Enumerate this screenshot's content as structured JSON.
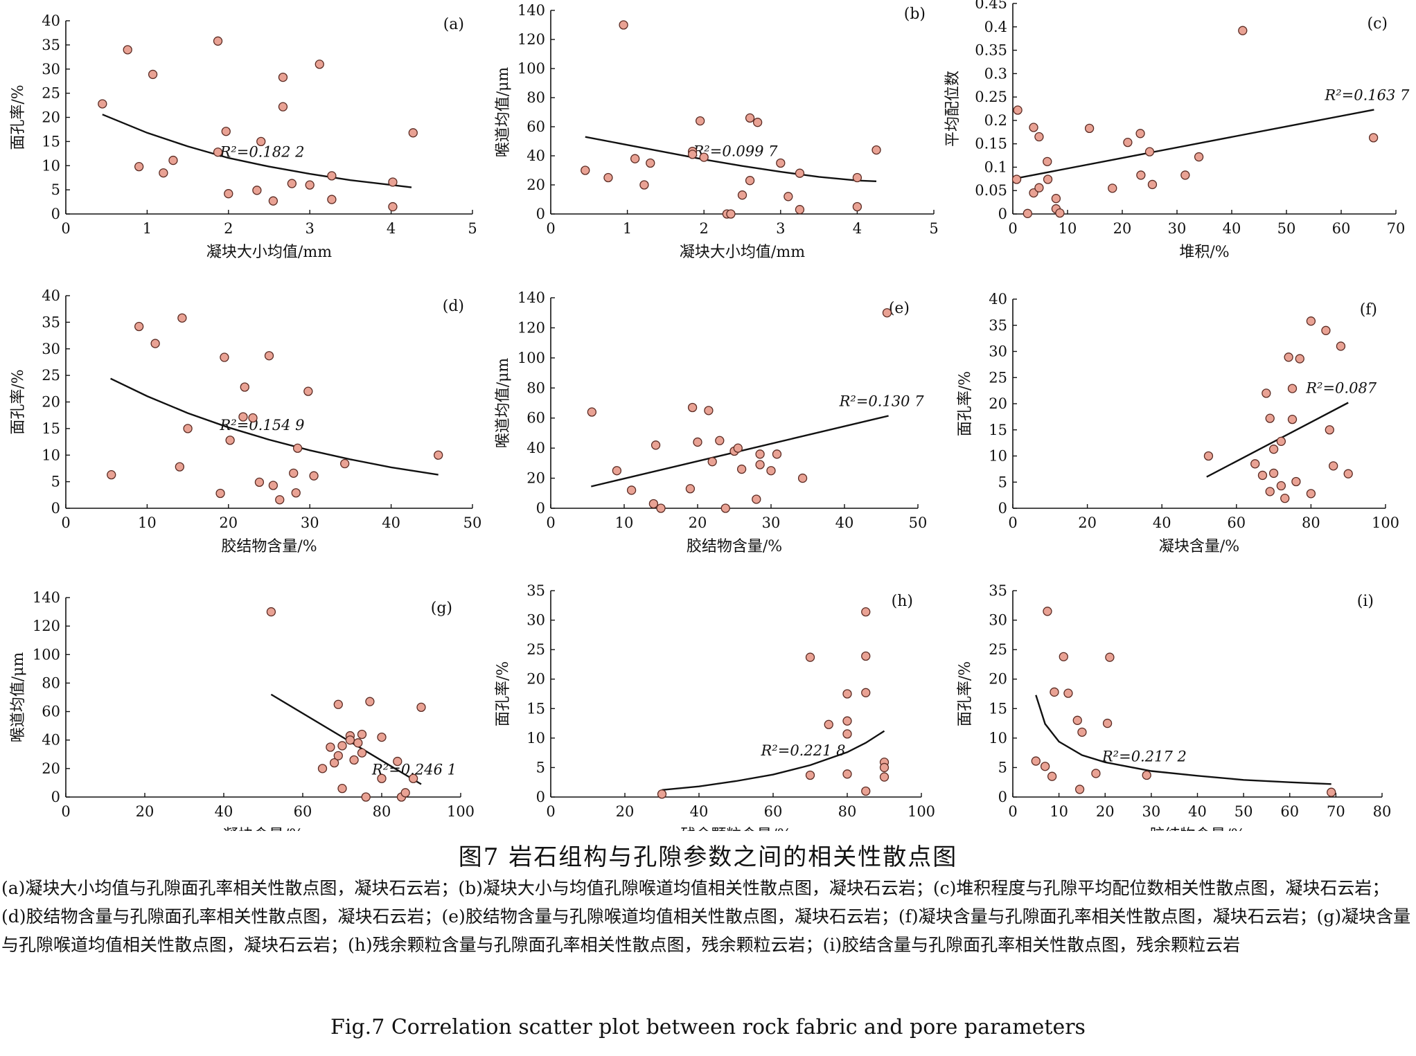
{
  "figure_caption_cn": "图7   岩石组构与孔隙参数之间的相关性散点图",
  "figure_caption_detail": "(a)凝块大小均值与孔隙面孔率相关性散点图，凝块石云岩；(b)凝块大小与均值孔隙喉道均值相关性散点图，凝块石云岩；(c)堆积程度与孔隙平均配位数相关性散点图，凝块石云岩；(d)胶结物含量与孔隙面孔率相关性散点图，凝块石云岩；(e)胶结物含量与孔隙喉道均值相关性散点图，凝块石云岩；(f)凝块含量与孔隙面孔率相关性散点图，凝块石云岩；(g)凝块含量与孔隙喉道均值相关性散点图，凝块石云岩；(h)残余颗粒含量与孔隙面孔率相关性散点图，残余颗粒云岩；(i)胶结含量与孔隙面孔率相关性散点图，残余颗粒云岩",
  "figure_caption_en": "Fig.7    Correlation scatter plot between rock fabric and pore parameters",
  "colors": {
    "marker_fill": "#e9a294",
    "marker_stroke": "#5a2a22",
    "line": "#111111",
    "axis": "#111111"
  },
  "chart_data": [
    {
      "type": "scatter",
      "label": "(a)",
      "xlabel": "凝块大小均值/mm",
      "ylabel": "面孔率/%",
      "xlim": [
        0,
        5
      ],
      "ylim": [
        0,
        40
      ],
      "xticks": [
        0,
        1,
        2,
        3,
        4,
        5
      ],
      "yticks": [
        0,
        5,
        10,
        15,
        20,
        25,
        30,
        35,
        40
      ],
      "annotation": "R²=0.182 2",
      "trend": {
        "kind": "power",
        "x_range": [
          0.45,
          4.25
        ],
        "x": [
          0.45,
          1,
          1.5,
          2,
          2.5,
          3,
          3.5,
          4,
          4.25
        ],
        "y": [
          20.6,
          16.8,
          14.0,
          11.6,
          9.8,
          8.3,
          7.0,
          6.0,
          5.5
        ]
      },
      "points": [
        {
          "x": 0.45,
          "y": 22.8
        },
        {
          "x": 0.76,
          "y": 34.0
        },
        {
          "x": 0.9,
          "y": 9.8
        },
        {
          "x": 1.07,
          "y": 28.9
        },
        {
          "x": 1.2,
          "y": 8.5
        },
        {
          "x": 1.32,
          "y": 11.1
        },
        {
          "x": 1.87,
          "y": 35.8
        },
        {
          "x": 1.87,
          "y": 12.8
        },
        {
          "x": 1.97,
          "y": 17.1
        },
        {
          "x": 2.0,
          "y": 4.2
        },
        {
          "x": 2.35,
          "y": 4.9
        },
        {
          "x": 2.4,
          "y": 15.0
        },
        {
          "x": 2.55,
          "y": 2.7
        },
        {
          "x": 2.67,
          "y": 28.3
        },
        {
          "x": 2.67,
          "y": 22.2
        },
        {
          "x": 2.78,
          "y": 6.3
        },
        {
          "x": 3.0,
          "y": 6.0
        },
        {
          "x": 3.12,
          "y": 31.0
        },
        {
          "x": 3.27,
          "y": 7.9
        },
        {
          "x": 3.27,
          "y": 3.0
        },
        {
          "x": 4.02,
          "y": 6.6
        },
        {
          "x": 4.02,
          "y": 1.5
        },
        {
          "x": 4.27,
          "y": 16.8
        }
      ]
    },
    {
      "type": "scatter",
      "label": "(b)",
      "xlabel": "凝块大小均值/mm",
      "ylabel": "喉道均值/μm",
      "xlim": [
        0,
        5
      ],
      "ylim": [
        0,
        140
      ],
      "xticks": [
        0,
        1,
        2,
        3,
        4,
        5
      ],
      "yticks": [
        0,
        20,
        40,
        60,
        80,
        100,
        120,
        140
      ],
      "annotation": "R²=0.099 7",
      "trend": {
        "kind": "quadratic",
        "x_range": [
          0.45,
          4.25
        ],
        "x": [
          0.45,
          1,
          1.5,
          2,
          2.5,
          3,
          3.5,
          4,
          4.25
        ],
        "y": [
          53,
          47.5,
          42.5,
          37.5,
          33,
          29,
          25.5,
          23,
          22.5
        ]
      },
      "points": [
        {
          "x": 0.45,
          "y": 30
        },
        {
          "x": 0.75,
          "y": 25
        },
        {
          "x": 0.95,
          "y": 130
        },
        {
          "x": 1.1,
          "y": 38
        },
        {
          "x": 1.22,
          "y": 20
        },
        {
          "x": 1.3,
          "y": 35
        },
        {
          "x": 1.85,
          "y": 43
        },
        {
          "x": 1.85,
          "y": 41
        },
        {
          "x": 1.95,
          "y": 64
        },
        {
          "x": 2.0,
          "y": 39
        },
        {
          "x": 2.3,
          "y": 0
        },
        {
          "x": 2.35,
          "y": 0
        },
        {
          "x": 2.5,
          "y": 13
        },
        {
          "x": 2.6,
          "y": 23
        },
        {
          "x": 2.6,
          "y": 66
        },
        {
          "x": 2.7,
          "y": 63
        },
        {
          "x": 3.0,
          "y": 35
        },
        {
          "x": 3.1,
          "y": 12
        },
        {
          "x": 3.25,
          "y": 28
        },
        {
          "x": 3.25,
          "y": 3
        },
        {
          "x": 4.0,
          "y": 25
        },
        {
          "x": 4.0,
          "y": 5
        },
        {
          "x": 4.25,
          "y": 44
        }
      ]
    },
    {
      "type": "scatter",
      "label": "(c)",
      "xlabel": "堆积/%",
      "ylabel": "平均配位数",
      "xlim": [
        0,
        70
      ],
      "ylim": [
        0,
        0.45
      ],
      "xticks": [
        0,
        10,
        20,
        30,
        40,
        50,
        60,
        70
      ],
      "yticks": [
        0,
        0.05,
        0.1,
        0.15,
        0.2,
        0.25,
        0.3,
        0.35,
        0.4,
        0.45
      ],
      "annotation": "R²=0.163 7",
      "trend": {
        "kind": "linear",
        "x_range": [
          0.5,
          66
        ],
        "x": [
          0.5,
          66
        ],
        "y": [
          0.076,
          0.223
        ]
      },
      "points": [
        {
          "x": 0.7,
          "y": 0.074
        },
        {
          "x": 0.9,
          "y": 0.222
        },
        {
          "x": 2.7,
          "y": 0.001
        },
        {
          "x": 3.8,
          "y": 0.185
        },
        {
          "x": 3.8,
          "y": 0.045
        },
        {
          "x": 4.8,
          "y": 0.165
        },
        {
          "x": 4.8,
          "y": 0.056
        },
        {
          "x": 6.3,
          "y": 0.112
        },
        {
          "x": 6.4,
          "y": 0.074
        },
        {
          "x": 7.9,
          "y": 0.033
        },
        {
          "x": 7.9,
          "y": 0.011
        },
        {
          "x": 8.6,
          "y": 0.002
        },
        {
          "x": 14.0,
          "y": 0.183
        },
        {
          "x": 18.2,
          "y": 0.055
        },
        {
          "x": 21.0,
          "y": 0.153
        },
        {
          "x": 23.3,
          "y": 0.172
        },
        {
          "x": 23.4,
          "y": 0.083
        },
        {
          "x": 25.0,
          "y": 0.133
        },
        {
          "x": 25.5,
          "y": 0.063
        },
        {
          "x": 31.5,
          "y": 0.083
        },
        {
          "x": 34.0,
          "y": 0.122
        },
        {
          "x": 42.0,
          "y": 0.392
        },
        {
          "x": 65.9,
          "y": 0.163
        }
      ]
    },
    {
      "type": "scatter",
      "label": "(d)",
      "xlabel": "胶结物含量/%",
      "ylabel": "面孔率/%",
      "xlim": [
        0,
        50
      ],
      "ylim": [
        0,
        40
      ],
      "xticks": [
        0,
        10,
        20,
        30,
        40,
        50
      ],
      "yticks": [
        0,
        5,
        10,
        15,
        20,
        25,
        30,
        35,
        40
      ],
      "annotation": "R²=0.154 9",
      "trend": {
        "kind": "power",
        "x_range": [
          5.5,
          45.8
        ],
        "x": [
          5.5,
          10,
          15,
          20,
          25,
          30,
          35,
          40,
          45.8
        ],
        "y": [
          24.4,
          21.1,
          17.9,
          15.2,
          12.9,
          10.9,
          9.2,
          7.7,
          6.3
        ]
      },
      "points": [
        {
          "x": 5.6,
          "y": 6.3
        },
        {
          "x": 9.0,
          "y": 34.2
        },
        {
          "x": 11.0,
          "y": 31.0
        },
        {
          "x": 14.0,
          "y": 7.8
        },
        {
          "x": 14.3,
          "y": 35.8
        },
        {
          "x": 15.0,
          "y": 15.0
        },
        {
          "x": 19.0,
          "y": 2.8
        },
        {
          "x": 19.5,
          "y": 28.4
        },
        {
          "x": 20.2,
          "y": 12.8
        },
        {
          "x": 21.8,
          "y": 17.2
        },
        {
          "x": 22.0,
          "y": 22.8
        },
        {
          "x": 23.0,
          "y": 17.0
        },
        {
          "x": 23.8,
          "y": 4.9
        },
        {
          "x": 25.0,
          "y": 28.7
        },
        {
          "x": 25.5,
          "y": 4.3
        },
        {
          "x": 26.3,
          "y": 1.6
        },
        {
          "x": 28.0,
          "y": 6.6
        },
        {
          "x": 28.3,
          "y": 2.9
        },
        {
          "x": 28.5,
          "y": 11.3
        },
        {
          "x": 29.8,
          "y": 22.0
        },
        {
          "x": 30.5,
          "y": 6.1
        },
        {
          "x": 34.3,
          "y": 8.4
        },
        {
          "x": 45.8,
          "y": 10.0
        }
      ]
    },
    {
      "type": "scatter",
      "label": "(e)",
      "xlabel": "胶结物含量/%",
      "ylabel": "喉道均值/μm",
      "xlim": [
        0,
        50
      ],
      "ylim": [
        0,
        140
      ],
      "xticks": [
        0,
        10,
        20,
        30,
        40,
        50
      ],
      "yticks": [
        0,
        20,
        40,
        60,
        80,
        100,
        120,
        140
      ],
      "annotation": "R²=0.130 7",
      "trend": {
        "kind": "linear",
        "x_range": [
          5.5,
          46
        ],
        "x": [
          5.5,
          46
        ],
        "y": [
          14.5,
          61.5
        ]
      },
      "points": [
        {
          "x": 5.6,
          "y": 64
        },
        {
          "x": 9.0,
          "y": 25
        },
        {
          "x": 11.0,
          "y": 12
        },
        {
          "x": 14.0,
          "y": 3
        },
        {
          "x": 14.3,
          "y": 42
        },
        {
          "x": 15.0,
          "y": 0
        },
        {
          "x": 19.0,
          "y": 13
        },
        {
          "x": 19.3,
          "y": 67
        },
        {
          "x": 20.0,
          "y": 44
        },
        {
          "x": 21.5,
          "y": 65
        },
        {
          "x": 22.0,
          "y": 31
        },
        {
          "x": 23.0,
          "y": 45
        },
        {
          "x": 23.8,
          "y": 0
        },
        {
          "x": 25.0,
          "y": 38
        },
        {
          "x": 25.5,
          "y": 40
        },
        {
          "x": 26.0,
          "y": 26
        },
        {
          "x": 28.0,
          "y": 6
        },
        {
          "x": 28.5,
          "y": 29
        },
        {
          "x": 28.5,
          "y": 36
        },
        {
          "x": 30.0,
          "y": 25
        },
        {
          "x": 30.8,
          "y": 36
        },
        {
          "x": 34.3,
          "y": 20
        },
        {
          "x": 45.8,
          "y": 130
        }
      ]
    },
    {
      "type": "scatter",
      "label": "(f)",
      "xlabel": "凝块含量/%",
      "ylabel": "面孔率/%",
      "xlim": [
        0,
        100
      ],
      "ylim": [
        0,
        40
      ],
      "xticks": [
        0,
        20,
        40,
        60,
        80,
        100
      ],
      "yticks": [
        0,
        5,
        10,
        15,
        20,
        25,
        30,
        35,
        40
      ],
      "annotation": "R²=0.087",
      "trend": {
        "kind": "linear",
        "x_range": [
          52,
          90
        ],
        "x": [
          52,
          90
        ],
        "y": [
          6.0,
          20.2
        ]
      },
      "points": [
        {
          "x": 52.5,
          "y": 10.0
        },
        {
          "x": 65.0,
          "y": 8.5
        },
        {
          "x": 67.0,
          "y": 6.3
        },
        {
          "x": 68.0,
          "y": 22.0
        },
        {
          "x": 69.0,
          "y": 17.2
        },
        {
          "x": 69.0,
          "y": 3.2
        },
        {
          "x": 70.0,
          "y": 11.3
        },
        {
          "x": 70.0,
          "y": 6.7
        },
        {
          "x": 72.0,
          "y": 12.8
        },
        {
          "x": 72.0,
          "y": 4.3
        },
        {
          "x": 73.0,
          "y": 1.9
        },
        {
          "x": 74.0,
          "y": 28.9
        },
        {
          "x": 75.0,
          "y": 22.9
        },
        {
          "x": 75.0,
          "y": 17.0
        },
        {
          "x": 76.0,
          "y": 5.1
        },
        {
          "x": 77.0,
          "y": 28.6
        },
        {
          "x": 80.0,
          "y": 35.8
        },
        {
          "x": 80.0,
          "y": 2.8
        },
        {
          "x": 84.0,
          "y": 34.0
        },
        {
          "x": 85.0,
          "y": 15.0
        },
        {
          "x": 86.0,
          "y": 8.1
        },
        {
          "x": 88.0,
          "y": 31.0
        },
        {
          "x": 90.0,
          "y": 6.6
        }
      ]
    },
    {
      "type": "scatter",
      "label": "(g)",
      "xlabel": "凝块含量/%",
      "ylabel": "喉道均值/μm",
      "xlim": [
        0,
        100
      ],
      "ylim": [
        0,
        140
      ],
      "xticks": [
        0,
        20,
        40,
        60,
        80,
        100
      ],
      "yticks": [
        0,
        20,
        40,
        60,
        80,
        100,
        120,
        140
      ],
      "annotation": "R²=0.246 1",
      "trend": {
        "kind": "linear",
        "x_range": [
          52,
          90
        ],
        "x": [
          52,
          90
        ],
        "y": [
          72,
          9
        ]
      },
      "points": [
        {
          "x": 52.0,
          "y": 130
        },
        {
          "x": 65.0,
          "y": 20
        },
        {
          "x": 67.0,
          "y": 35
        },
        {
          "x": 68.0,
          "y": 24
        },
        {
          "x": 69.0,
          "y": 65
        },
        {
          "x": 69.0,
          "y": 29
        },
        {
          "x": 70.0,
          "y": 6
        },
        {
          "x": 70.0,
          "y": 36
        },
        {
          "x": 72.0,
          "y": 43
        },
        {
          "x": 72.0,
          "y": 40
        },
        {
          "x": 73.0,
          "y": 26
        },
        {
          "x": 74.0,
          "y": 38
        },
        {
          "x": 75.0,
          "y": 44
        },
        {
          "x": 75.0,
          "y": 31
        },
        {
          "x": 76.0,
          "y": 0
        },
        {
          "x": 77.0,
          "y": 67
        },
        {
          "x": 80.0,
          "y": 42
        },
        {
          "x": 80.0,
          "y": 13
        },
        {
          "x": 84.0,
          "y": 25
        },
        {
          "x": 85.0,
          "y": 0
        },
        {
          "x": 86.0,
          "y": 3
        },
        {
          "x": 88.0,
          "y": 13
        },
        {
          "x": 90.0,
          "y": 63
        }
      ]
    },
    {
      "type": "scatter",
      "label": "(h)",
      "xlabel": "残余颗粒含量/%",
      "ylabel": "面孔率/%",
      "xlim": [
        0,
        100
      ],
      "ylim": [
        0,
        35
      ],
      "xticks": [
        0,
        20,
        40,
        60,
        80,
        100
      ],
      "yticks": [
        0,
        5,
        10,
        15,
        20,
        25,
        30,
        35
      ],
      "annotation": "R²=0.221 8",
      "trend": {
        "kind": "exponential",
        "x_range": [
          30,
          90
        ],
        "x": [
          30,
          40,
          50,
          60,
          70,
          80,
          85,
          90
        ],
        "y": [
          1.2,
          1.8,
          2.7,
          3.8,
          5.4,
          7.6,
          9.2,
          11.2
        ]
      },
      "points": [
        {
          "x": 30.0,
          "y": 0.5
        },
        {
          "x": 70.0,
          "y": 23.7
        },
        {
          "x": 70.0,
          "y": 3.7
        },
        {
          "x": 75.0,
          "y": 12.3
        },
        {
          "x": 80.0,
          "y": 17.5
        },
        {
          "x": 80.0,
          "y": 12.9
        },
        {
          "x": 80.0,
          "y": 10.7
        },
        {
          "x": 80.0,
          "y": 3.9
        },
        {
          "x": 85.0,
          "y": 31.4
        },
        {
          "x": 85.0,
          "y": 23.9
        },
        {
          "x": 85.0,
          "y": 17.7
        },
        {
          "x": 85.0,
          "y": 1.0
        },
        {
          "x": 90.0,
          "y": 5.9
        },
        {
          "x": 90.0,
          "y": 5.0
        },
        {
          "x": 90.0,
          "y": 3.4
        }
      ]
    },
    {
      "type": "scatter",
      "label": "(i)",
      "xlabel": "胶结物含量/%",
      "ylabel": "面孔率/%",
      "xlim": [
        0,
        80
      ],
      "ylim": [
        0,
        35
      ],
      "xticks": [
        0,
        10,
        20,
        30,
        40,
        50,
        60,
        70,
        80
      ],
      "yticks": [
        0,
        5,
        10,
        15,
        20,
        25,
        30,
        35
      ],
      "annotation": "R²=0.217 2",
      "trend": {
        "kind": "power",
        "x_range": [
          5,
          69
        ],
        "x": [
          5,
          7,
          10,
          15,
          20,
          30,
          40,
          50,
          60,
          69
        ],
        "y": [
          17.3,
          12.4,
          9.4,
          7.1,
          5.9,
          4.4,
          3.6,
          2.9,
          2.5,
          2.2
        ]
      },
      "points": [
        {
          "x": 5.0,
          "y": 6.1
        },
        {
          "x": 7.0,
          "y": 5.2
        },
        {
          "x": 7.5,
          "y": 31.5
        },
        {
          "x": 8.5,
          "y": 3.5
        },
        {
          "x": 9.0,
          "y": 17.8
        },
        {
          "x": 11.0,
          "y": 23.8
        },
        {
          "x": 12.0,
          "y": 17.6
        },
        {
          "x": 14.0,
          "y": 13.0
        },
        {
          "x": 14.5,
          "y": 1.3
        },
        {
          "x": 15.0,
          "y": 11.0
        },
        {
          "x": 18.0,
          "y": 4.0
        },
        {
          "x": 20.5,
          "y": 12.5
        },
        {
          "x": 21.0,
          "y": 23.7
        },
        {
          "x": 29.0,
          "y": 3.7
        },
        {
          "x": 69.0,
          "y": 0.8
        }
      ]
    }
  ]
}
